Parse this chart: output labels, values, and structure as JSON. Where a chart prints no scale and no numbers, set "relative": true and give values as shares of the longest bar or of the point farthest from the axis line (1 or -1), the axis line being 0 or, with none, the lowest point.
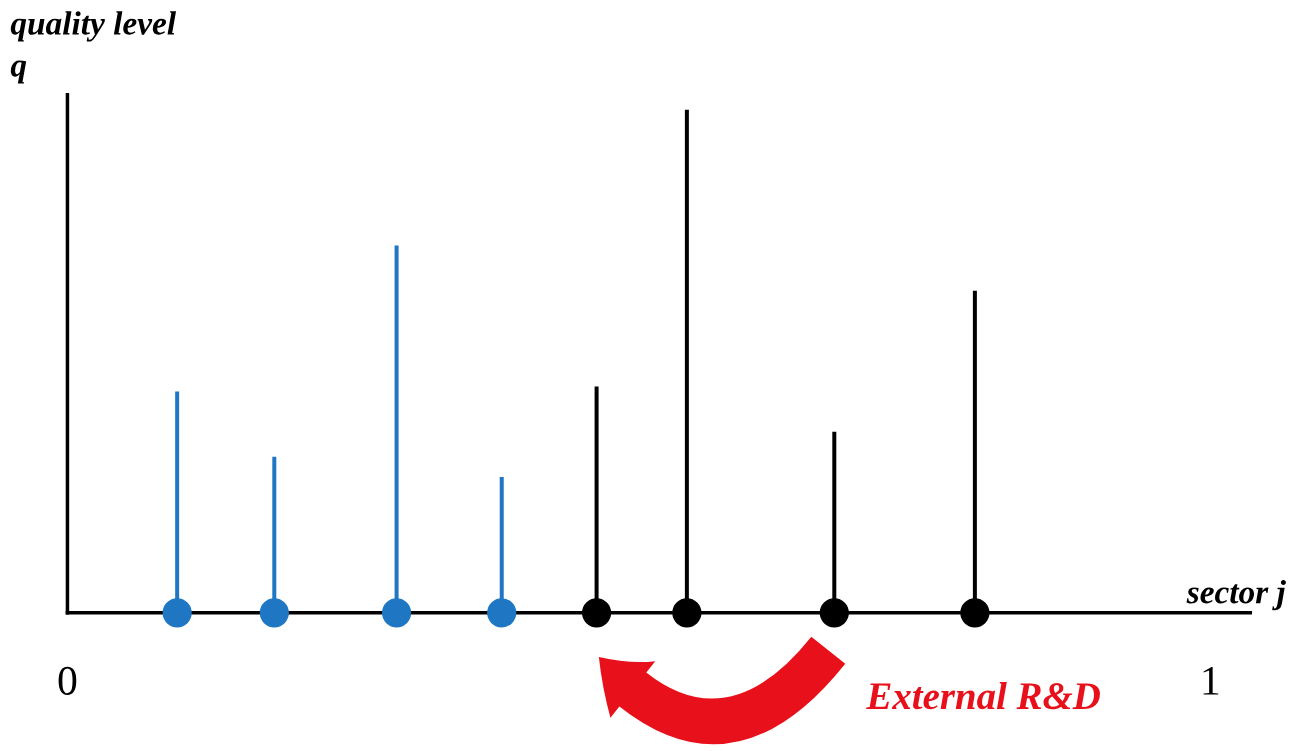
{
  "chart_data": {
    "type": "bar",
    "relative": true,
    "ylabel": "quality level\nq",
    "xlabel": "sector j",
    "xlim": [
      0,
      1.035
    ],
    "xticks": [
      0,
      1
    ],
    "annotations": [
      "External R&D"
    ],
    "series": [
      {
        "color": "#1f77c4",
        "x": [
          0.096,
          0.181,
          0.288,
          0.38
        ],
        "values": [
          0.44,
          0.31,
          0.73,
          0.27
        ]
      },
      {
        "color": "#000000",
        "x": [
          0.463,
          0.542,
          0.671,
          0.794
        ],
        "values": [
          0.45,
          1.0,
          0.36,
          0.64
        ]
      },
      {
        "type": "scatter",
        "marker": "circle",
        "color": "#1f77c4",
        "x": [
          0.096,
          0.181,
          0.288,
          0.38
        ],
        "values": [
          0,
          0,
          0,
          0
        ]
      },
      {
        "type": "scatter",
        "marker": "circle",
        "color": "#000000",
        "x": [
          0.463,
          0.542,
          0.671,
          0.794
        ],
        "values": [
          0,
          0,
          0,
          0
        ]
      }
    ]
  }
}
